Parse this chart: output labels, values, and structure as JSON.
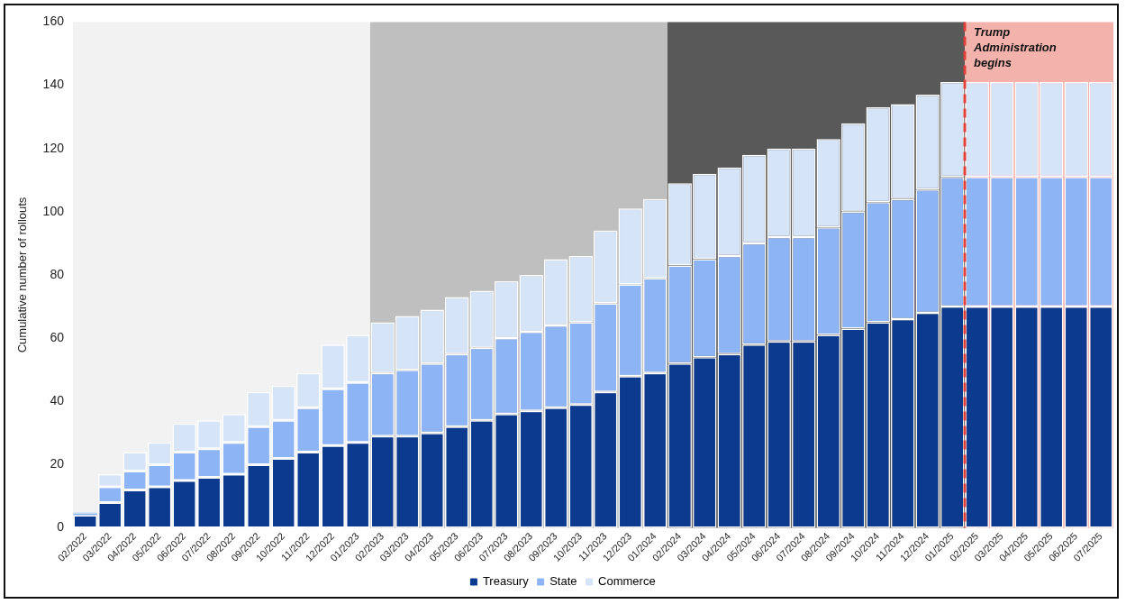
{
  "chart_data": {
    "type": "bar",
    "stacked": true,
    "ylabel": "Cumulative number of rollouts",
    "categories": [
      "02/2022",
      "03/2022",
      "04/2022",
      "05/2022",
      "06/2022",
      "07/2022",
      "08/2022",
      "09/2022",
      "10/2022",
      "11/2022",
      "12/2022",
      "01/2023",
      "02/2023",
      "03/2023",
      "04/2023",
      "05/2023",
      "06/2023",
      "07/2023",
      "08/2023",
      "09/2023",
      "10/2023",
      "11/2023",
      "12/2023",
      "01/2024",
      "02/2024",
      "03/2024",
      "04/2024",
      "05/2024",
      "06/2024",
      "07/2024",
      "08/2024",
      "09/2024",
      "10/2024",
      "11/2024",
      "12/2024",
      "01/2025",
      "02/2025",
      "03/2025",
      "04/2025",
      "05/2025",
      "06/2025",
      "07/2025"
    ],
    "series": [
      {
        "name": "Treasury",
        "color": "#0b3a8f",
        "values": [
          4,
          8,
          12,
          13,
          15,
          16,
          17,
          20,
          22,
          24,
          26,
          27,
          29,
          29,
          30,
          32,
          34,
          36,
          37,
          38,
          39,
          43,
          48,
          49,
          52,
          54,
          55,
          58,
          59,
          59,
          61,
          63,
          65,
          66,
          68,
          70,
          70,
          70,
          70,
          70,
          70,
          70
        ]
      },
      {
        "name": "State",
        "color": "#8db4f5",
        "values": [
          0.5,
          5,
          6,
          7,
          9,
          9,
          10,
          12,
          12,
          14,
          18,
          19,
          20,
          21,
          22,
          23,
          23,
          24,
          25,
          26,
          26,
          28,
          29,
          30,
          31,
          31,
          31,
          32,
          33,
          33,
          34,
          37,
          38,
          38,
          39,
          41,
          41,
          41,
          41,
          41,
          41,
          41
        ]
      },
      {
        "name": "Commerce",
        "color": "#d6e4f8",
        "values": [
          0.5,
          4,
          6,
          7,
          9,
          9,
          9,
          11,
          11,
          11,
          14,
          15,
          16,
          17,
          17,
          18,
          18,
          18,
          18,
          21,
          21,
          23,
          24,
          25,
          26,
          27,
          28,
          28,
          28,
          28,
          28,
          28,
          30,
          30,
          30,
          30,
          30,
          30,
          30,
          30,
          30,
          30
        ]
      }
    ],
    "ylim": [
      0,
      160
    ],
    "yticks": [
      0,
      20,
      40,
      60,
      80,
      100,
      120,
      140,
      160
    ],
    "grid": false,
    "legend": "bottom",
    "bands": [
      {
        "axis": "x",
        "from": "02/2022",
        "to": "01/2023",
        "color": "#f2f2f2"
      },
      {
        "axis": "x",
        "from": "02/2023",
        "to": "01/2024",
        "color": "#bfbfbf"
      },
      {
        "axis": "x",
        "from": "02/2024",
        "to": "01/2025",
        "color": "#595959"
      },
      {
        "axis": "x",
        "from": "02/2025",
        "to": "07/2025",
        "color": "#f4b2ac",
        "label": "Trump Administration begins"
      }
    ],
    "ref_lines": [
      {
        "axis": "x",
        "value": "02/2025",
        "color": "#e0403a",
        "line_style": "dashed"
      }
    ]
  }
}
